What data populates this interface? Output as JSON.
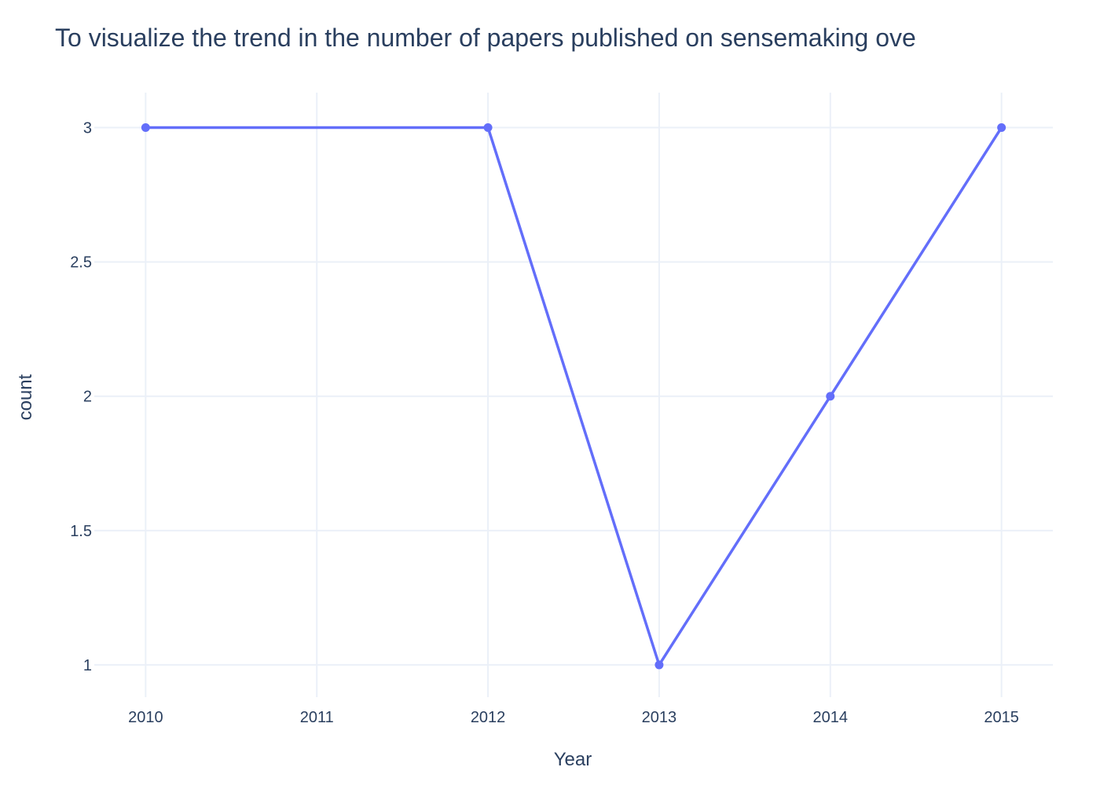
{
  "chart_data": {
    "type": "line",
    "title": "To visualize the trend in the number of papers published on sensemaking ove",
    "xlabel": "Year",
    "ylabel": "count",
    "x": [
      2010,
      2012,
      2013,
      2014,
      2015
    ],
    "y": [
      3,
      3,
      1,
      2,
      3
    ],
    "x_ticks": [
      "2010",
      "2011",
      "2012",
      "2013",
      "2014",
      "2015"
    ],
    "y_ticks": [
      "1",
      "1.5",
      "2",
      "2.5",
      "3"
    ],
    "xlim": [
      2009.7,
      2015.3
    ],
    "ylim": [
      0.88,
      3.13
    ],
    "grid": true,
    "markers": true,
    "colors": {
      "line": "#636efa",
      "grid": "#ebf0f8",
      "text": "#2a3f5f"
    }
  }
}
